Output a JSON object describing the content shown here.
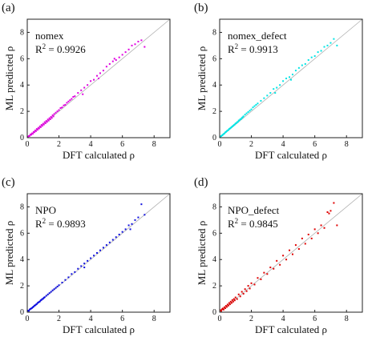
{
  "figure": {
    "panels": [
      {
        "tag": "(a)",
        "color": "#e000e0",
        "label": "nomex",
        "r2_prefix": "R",
        "r2_sup": "2",
        "r2_value": " = 0.9926"
      },
      {
        "tag": "(b)",
        "color": "#00e5e5",
        "label": "nomex_defect",
        "r2_prefix": "R",
        "r2_sup": "2",
        "r2_value": " = 0.9913"
      },
      {
        "tag": "(c)",
        "color": "#1010e0",
        "label": "NPO",
        "r2_prefix": "R",
        "r2_sup": "2",
        "r2_value": " = 0.9893"
      },
      {
        "tag": "(d)",
        "color": "#e00000",
        "label": "NPO_defect",
        "r2_prefix": "R",
        "r2_sup": "2",
        "r2_value": " = 0.9845"
      }
    ],
    "xlabel": "DFT calculated ρ",
    "ylabel": "ML predicted ρ",
    "x_ticks": [
      "0",
      "2",
      "4",
      "6",
      "8"
    ],
    "y_ticks": [
      "0",
      "2",
      "4",
      "6",
      "8"
    ]
  },
  "chart_data": [
    {
      "type": "scatter",
      "title": "(a)",
      "xlabel": "DFT calculated ρ",
      "ylabel": "ML predicted ρ",
      "xlim": [
        0,
        9
      ],
      "ylim": [
        0,
        9
      ],
      "reference_line": "y = x",
      "grid": false,
      "annotation": "nomex R² = 0.9926",
      "series": [
        {
          "points": [
            [
              0.05,
              0.08
            ],
            [
              0.1,
              0.12
            ],
            [
              0.15,
              0.14
            ],
            [
              0.2,
              0.25
            ],
            [
              0.25,
              0.22
            ],
            [
              0.3,
              0.33
            ],
            [
              0.35,
              0.3
            ],
            [
              0.4,
              0.44
            ],
            [
              0.45,
              0.41
            ],
            [
              0.5,
              0.55
            ],
            [
              0.55,
              0.5
            ],
            [
              0.6,
              0.66
            ],
            [
              0.65,
              0.6
            ],
            [
              0.7,
              0.75
            ],
            [
              0.75,
              0.7
            ],
            [
              0.8,
              0.86
            ],
            [
              0.85,
              0.8
            ],
            [
              0.9,
              0.97
            ],
            [
              0.95,
              0.9
            ],
            [
              1.0,
              1.06
            ],
            [
              1.05,
              1.0
            ],
            [
              1.1,
              1.18
            ],
            [
              1.15,
              1.1
            ],
            [
              1.2,
              1.27
            ],
            [
              1.25,
              1.2
            ],
            [
              1.3,
              1.38
            ],
            [
              1.35,
              1.3
            ],
            [
              1.4,
              1.48
            ],
            [
              1.45,
              1.4
            ],
            [
              1.5,
              1.58
            ],
            [
              1.55,
              1.5
            ],
            [
              1.6,
              1.7
            ],
            [
              1.65,
              1.62
            ],
            [
              1.7,
              1.8
            ],
            [
              1.8,
              1.9
            ],
            [
              1.9,
              2.0
            ],
            [
              2.0,
              2.1
            ],
            [
              2.1,
              2.25
            ],
            [
              2.2,
              2.3
            ],
            [
              2.3,
              2.45
            ],
            [
              2.4,
              2.5
            ],
            [
              2.5,
              2.65
            ],
            [
              2.6,
              2.75
            ],
            [
              2.7,
              2.85
            ],
            [
              2.8,
              2.95
            ],
            [
              2.9,
              3.1
            ],
            [
              3.0,
              3.15
            ],
            [
              3.2,
              3.4
            ],
            [
              3.4,
              3.6
            ],
            [
              3.6,
              3.8
            ],
            [
              3.8,
              4.0
            ],
            [
              4.0,
              4.3
            ],
            [
              4.2,
              4.4
            ],
            [
              4.4,
              4.7
            ],
            [
              4.6,
              4.9
            ],
            [
              4.8,
              5.1
            ],
            [
              5.0,
              5.4
            ],
            [
              5.2,
              5.6
            ],
            [
              5.4,
              5.8
            ],
            [
              5.6,
              5.9
            ],
            [
              5.8,
              6.1
            ],
            [
              6.0,
              6.3
            ],
            [
              6.2,
              6.5
            ],
            [
              6.4,
              6.7
            ],
            [
              6.6,
              7.0
            ],
            [
              6.8,
              7.1
            ],
            [
              7.0,
              7.3
            ],
            [
              7.2,
              7.4
            ],
            [
              7.4,
              6.9
            ],
            [
              3.5,
              3.3
            ],
            [
              4.5,
              4.5
            ],
            [
              5.5,
              6.0
            ]
          ]
        }
      ]
    },
    {
      "type": "scatter",
      "title": "(b)",
      "xlabel": "DFT calculated ρ",
      "ylabel": "ML predicted ρ",
      "xlim": [
        0,
        9
      ],
      "ylim": [
        0,
        9
      ],
      "reference_line": "y = x",
      "grid": false,
      "annotation": "nomex_defect R² = 0.9913",
      "series": [
        {
          "points": [
            [
              0.05,
              0.1
            ],
            [
              0.1,
              0.12
            ],
            [
              0.15,
              0.18
            ],
            [
              0.2,
              0.22
            ],
            [
              0.25,
              0.28
            ],
            [
              0.3,
              0.32
            ],
            [
              0.35,
              0.4
            ],
            [
              0.4,
              0.44
            ],
            [
              0.45,
              0.5
            ],
            [
              0.5,
              0.55
            ],
            [
              0.55,
              0.58
            ],
            [
              0.6,
              0.66
            ],
            [
              0.65,
              0.7
            ],
            [
              0.7,
              0.75
            ],
            [
              0.75,
              0.8
            ],
            [
              0.8,
              0.86
            ],
            [
              0.85,
              0.9
            ],
            [
              0.9,
              0.96
            ],
            [
              0.95,
              1.0
            ],
            [
              1.0,
              1.08
            ],
            [
              1.05,
              1.1
            ],
            [
              1.1,
              1.18
            ],
            [
              1.15,
              1.2
            ],
            [
              1.2,
              1.3
            ],
            [
              1.25,
              1.32
            ],
            [
              1.3,
              1.4
            ],
            [
              1.35,
              1.42
            ],
            [
              1.4,
              1.5
            ],
            [
              1.45,
              1.55
            ],
            [
              1.5,
              1.62
            ],
            [
              1.6,
              1.75
            ],
            [
              1.7,
              1.85
            ],
            [
              1.8,
              1.95
            ],
            [
              1.9,
              2.05
            ],
            [
              2.0,
              2.15
            ],
            [
              2.1,
              2.3
            ],
            [
              2.2,
              2.4
            ],
            [
              2.3,
              2.5
            ],
            [
              2.4,
              2.6
            ],
            [
              2.6,
              2.8
            ],
            [
              2.8,
              3.0
            ],
            [
              3.0,
              3.2
            ],
            [
              3.2,
              3.4
            ],
            [
              3.4,
              3.7
            ],
            [
              3.6,
              3.8
            ],
            [
              3.8,
              4.0
            ],
            [
              4.0,
              4.3
            ],
            [
              4.2,
              4.5
            ],
            [
              4.4,
              4.6
            ],
            [
              4.6,
              4.8
            ],
            [
              4.8,
              5.1
            ],
            [
              5.0,
              5.3
            ],
            [
              5.2,
              5.5
            ],
            [
              5.4,
              5.6
            ],
            [
              5.6,
              5.9
            ],
            [
              5.8,
              6.1
            ],
            [
              6.0,
              6.2
            ],
            [
              6.2,
              6.5
            ],
            [
              6.4,
              6.6
            ],
            [
              6.6,
              6.9
            ],
            [
              6.8,
              7.0
            ],
            [
              7.0,
              7.2
            ],
            [
              7.2,
              7.5
            ],
            [
              7.4,
              7.0
            ],
            [
              3.5,
              3.4
            ],
            [
              4.5,
              4.4
            ]
          ]
        }
      ]
    },
    {
      "type": "scatter",
      "title": "(c)",
      "xlabel": "DFT calculated ρ",
      "ylabel": "ML predicted ρ",
      "xlim": [
        0,
        9
      ],
      "ylim": [
        0,
        9
      ],
      "reference_line": "y = x",
      "grid": false,
      "annotation": "NPO R² = 0.9893",
      "series": [
        {
          "points": [
            [
              0.05,
              0.12
            ],
            [
              0.1,
              0.1
            ],
            [
              0.15,
              0.2
            ],
            [
              0.2,
              0.25
            ],
            [
              0.25,
              0.28
            ],
            [
              0.3,
              0.32
            ],
            [
              0.35,
              0.38
            ],
            [
              0.4,
              0.42
            ],
            [
              0.45,
              0.5
            ],
            [
              0.5,
              0.52
            ],
            [
              0.55,
              0.58
            ],
            [
              0.6,
              0.62
            ],
            [
              0.65,
              0.7
            ],
            [
              0.7,
              0.74
            ],
            [
              0.75,
              0.78
            ],
            [
              0.8,
              0.82
            ],
            [
              0.85,
              0.9
            ],
            [
              0.9,
              0.94
            ],
            [
              0.95,
              1.0
            ],
            [
              1.0,
              1.02
            ],
            [
              1.05,
              1.1
            ],
            [
              1.1,
              1.14
            ],
            [
              1.2,
              1.25
            ],
            [
              1.3,
              1.35
            ],
            [
              1.4,
              1.45
            ],
            [
              1.5,
              1.55
            ],
            [
              1.6,
              1.66
            ],
            [
              1.7,
              1.75
            ],
            [
              1.8,
              1.85
            ],
            [
              1.9,
              1.95
            ],
            [
              2.0,
              2.05
            ],
            [
              2.2,
              2.25
            ],
            [
              2.4,
              2.45
            ],
            [
              2.6,
              2.65
            ],
            [
              2.8,
              2.9
            ],
            [
              3.0,
              3.05
            ],
            [
              3.2,
              3.3
            ],
            [
              3.4,
              3.5
            ],
            [
              3.6,
              3.7
            ],
            [
              3.8,
              3.9
            ],
            [
              4.0,
              4.1
            ],
            [
              4.2,
              4.3
            ],
            [
              4.4,
              4.5
            ],
            [
              4.6,
              4.7
            ],
            [
              4.8,
              4.9
            ],
            [
              5.0,
              5.1
            ],
            [
              5.2,
              5.3
            ],
            [
              5.4,
              5.5
            ],
            [
              5.6,
              5.7
            ],
            [
              5.8,
              5.9
            ],
            [
              6.0,
              6.1
            ],
            [
              6.2,
              6.3
            ],
            [
              6.4,
              6.6
            ],
            [
              6.6,
              6.7
            ],
            [
              6.8,
              7.0
            ],
            [
              7.0,
              7.2
            ],
            [
              7.2,
              8.2
            ],
            [
              7.4,
              7.4
            ],
            [
              6.5,
              6.3
            ],
            [
              3.6,
              3.4
            ]
          ]
        }
      ]
    },
    {
      "type": "scatter",
      "title": "(d)",
      "xlabel": "DFT calculated ρ",
      "ylabel": "ML predicted ρ",
      "xlim": [
        0,
        9
      ],
      "ylim": [
        0,
        9
      ],
      "reference_line": "y = x",
      "grid": false,
      "annotation": "NPO_defect R² = 0.9845",
      "series": [
        {
          "points": [
            [
              0.05,
              0.15
            ],
            [
              0.1,
              0.1
            ],
            [
              0.15,
              0.22
            ],
            [
              0.2,
              0.28
            ],
            [
              0.25,
              0.2
            ],
            [
              0.3,
              0.38
            ],
            [
              0.35,
              0.3
            ],
            [
              0.4,
              0.48
            ],
            [
              0.45,
              0.4
            ],
            [
              0.5,
              0.58
            ],
            [
              0.55,
              0.5
            ],
            [
              0.6,
              0.7
            ],
            [
              0.65,
              0.6
            ],
            [
              0.7,
              0.8
            ],
            [
              0.75,
              0.7
            ],
            [
              0.8,
              0.92
            ],
            [
              0.85,
              0.8
            ],
            [
              0.9,
              1.0
            ],
            [
              0.95,
              0.9
            ],
            [
              1.0,
              1.12
            ],
            [
              1.1,
              1.0
            ],
            [
              1.2,
              1.35
            ],
            [
              1.3,
              1.2
            ],
            [
              1.4,
              1.55
            ],
            [
              1.5,
              1.4
            ],
            [
              1.6,
              1.75
            ],
            [
              1.7,
              1.6
            ],
            [
              1.8,
              2.0
            ],
            [
              1.9,
              1.8
            ],
            [
              2.0,
              2.2
            ],
            [
              2.2,
              2.1
            ],
            [
              2.4,
              2.6
            ],
            [
              2.6,
              2.5
            ],
            [
              2.8,
              3.0
            ],
            [
              3.0,
              2.9
            ],
            [
              3.2,
              3.4
            ],
            [
              3.4,
              3.3
            ],
            [
              3.6,
              3.9
            ],
            [
              3.8,
              3.6
            ],
            [
              4.0,
              4.3
            ],
            [
              4.2,
              4.0
            ],
            [
              4.4,
              4.7
            ],
            [
              4.6,
              4.4
            ],
            [
              4.8,
              5.1
            ],
            [
              5.0,
              4.8
            ],
            [
              5.2,
              5.6
            ],
            [
              5.4,
              5.2
            ],
            [
              5.6,
              5.9
            ],
            [
              5.8,
              5.6
            ],
            [
              6.0,
              6.3
            ],
            [
              6.2,
              6.0
            ],
            [
              6.4,
              6.6
            ],
            [
              6.6,
              6.4
            ],
            [
              6.8,
              7.6
            ],
            [
              7.0,
              7.7
            ],
            [
              7.2,
              8.3
            ],
            [
              7.4,
              6.6
            ],
            [
              6.9,
              7.5
            ]
          ]
        }
      ]
    }
  ]
}
